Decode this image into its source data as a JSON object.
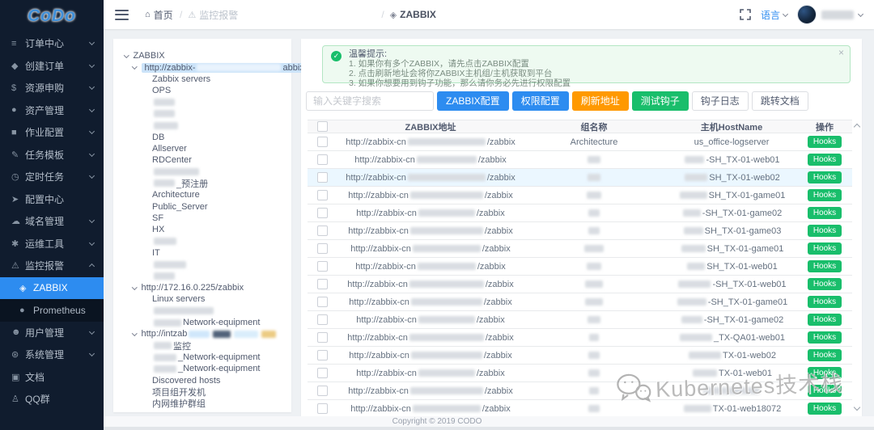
{
  "app": {
    "logo": "CoDo"
  },
  "header": {
    "breadcrumb": [
      {
        "name": "home",
        "glyph": "⌂",
        "label": "首页"
      },
      {
        "name": "monitor-alert",
        "glyph": "⚠",
        "label": "监控报警"
      },
      {
        "name": "zabbix",
        "glyph": "◈",
        "label": "ZABBIX"
      }
    ],
    "language_label": "语言"
  },
  "sidebar": {
    "items": [
      {
        "name": "order-center",
        "glyph": "≡",
        "label": "订单中心",
        "chevron": "down"
      },
      {
        "name": "create-order",
        "glyph": "◆",
        "label": "创建订单",
        "chevron": "down"
      },
      {
        "name": "resource-purchase",
        "glyph": "$",
        "label": "资源申购",
        "chevron": "down"
      },
      {
        "name": "asset-management",
        "glyph": "●",
        "label": "资产管理",
        "chevron": "down"
      },
      {
        "name": "job-config",
        "glyph": "■",
        "label": "作业配置",
        "chevron": "down"
      },
      {
        "name": "task-template",
        "glyph": "✎",
        "label": "任务模板",
        "chevron": "down"
      },
      {
        "name": "scheduled-task",
        "glyph": "◷",
        "label": "定时任务",
        "chevron": "down"
      },
      {
        "name": "config-center",
        "glyph": "➤",
        "label": "配置中心",
        "chevron": null
      },
      {
        "name": "domain-management",
        "glyph": "☁",
        "label": "域名管理",
        "chevron": "down"
      },
      {
        "name": "ops-tools",
        "glyph": "✱",
        "label": "运维工具",
        "chevron": "down"
      },
      {
        "name": "monitor-alert",
        "glyph": "⚠",
        "label": "监控报警",
        "chevron": "up",
        "children": [
          {
            "name": "zabbix",
            "glyph": "◈",
            "label": "ZABBIX",
            "active": true
          },
          {
            "name": "prometheus",
            "glyph": "●",
            "label": "Prometheus",
            "active": false
          }
        ]
      },
      {
        "name": "user-management",
        "glyph": "☻",
        "label": "用户管理",
        "chevron": "down"
      },
      {
        "name": "system-management",
        "glyph": "⊛",
        "label": "系统管理",
        "chevron": "down"
      },
      {
        "name": "docs",
        "glyph": "▣",
        "label": "文档",
        "chevron": null
      },
      {
        "name": "qq-group",
        "glyph": "♙",
        "label": "QQ群",
        "chevron": null
      }
    ]
  },
  "alert": {
    "title": "温馨提示:",
    "lines": [
      "1. 如果你有多个ZABBIX，请先点击ZABBIX配置",
      "2. 点击刷新地址会将你ZABBIX主机组/主机获取到平台",
      "3. 如果你想要用到钩子功能，那么请你务必先进行权限配置"
    ],
    "close_glyph": "×"
  },
  "toolbar": {
    "search_placeholder": "输入关键字搜索",
    "buttons": [
      {
        "name": "zabbix-config",
        "label": "ZABBIX配置",
        "type": "primary"
      },
      {
        "name": "permission-config",
        "label": "权限配置",
        "type": "primary"
      },
      {
        "name": "refresh-address",
        "label": "刷新地址",
        "type": "warning"
      },
      {
        "name": "test-hook",
        "label": "测试钩子",
        "type": "success"
      },
      {
        "name": "hook-log",
        "label": "钩子日志",
        "type": "default"
      },
      {
        "name": "goto-docs",
        "label": "跳转文档",
        "type": "default"
      }
    ]
  },
  "tree": {
    "nodes": [
      {
        "lv": 0,
        "arrow": true,
        "pre": "ZABBIX"
      },
      {
        "lv": 1,
        "arrow": true,
        "sel": true,
        "pre": "http://zabbix-",
        "blurs": [
          {
            "w": 104
          }
        ],
        "suf": "abbix"
      },
      {
        "lv": 2,
        "pre": "Zabbix servers"
      },
      {
        "lv": 2,
        "pre": "OPS"
      },
      {
        "lv": 2,
        "blurs": [
          {
            "w": 26
          }
        ]
      },
      {
        "lv": 2,
        "blurs": [
          {
            "w": 26
          }
        ]
      },
      {
        "lv": 2,
        "blurs": [
          {
            "w": 30
          }
        ]
      },
      {
        "lv": 2,
        "pre": "DB"
      },
      {
        "lv": 2,
        "pre": "Allserver"
      },
      {
        "lv": 2,
        "pre": "RDCenter"
      },
      {
        "lv": 2,
        "blurs": [
          {
            "w": 56
          }
        ]
      },
      {
        "lv": 2,
        "blurs": [
          {
            "w": 26
          }
        ],
        "suf": "_预注册"
      },
      {
        "lv": 2,
        "pre": "Architecture"
      },
      {
        "lv": 2,
        "pre": "Public_Server"
      },
      {
        "lv": 2,
        "pre": "SF"
      },
      {
        "lv": 2,
        "pre": "HX"
      },
      {
        "lv": 2,
        "blurs": [
          {
            "w": 28
          }
        ]
      },
      {
        "lv": 2,
        "pre": "IT"
      },
      {
        "lv": 2,
        "blurs": [
          {
            "w": 40
          }
        ]
      },
      {
        "lv": 2,
        "blurs": [
          {
            "w": 26
          }
        ]
      },
      {
        "lv": 1,
        "arrow": true,
        "pre": "http://172.16.0.225/zabbix"
      },
      {
        "lv": 2,
        "pre": "Linux servers"
      },
      {
        "lv": 2,
        "blurs": [
          {
            "w": 74
          }
        ]
      },
      {
        "lv": 2,
        "blurs": [
          {
            "w": 34
          }
        ],
        "suf": "Network-equipment"
      },
      {
        "lv": 1,
        "arrow": true,
        "pre": "http://intzab",
        "blurs": [
          {
            "w": 26,
            "c": "#cfe7fb"
          },
          {
            "w": 22,
            "c": "#51637a"
          },
          {
            "w": 30,
            "c": "#d9edfb"
          },
          {
            "w": 18,
            "c": "#eccb83"
          }
        ]
      },
      {
        "lv": 2,
        "blurs": [
          {
            "w": 22
          }
        ],
        "suf": "监控"
      },
      {
        "lv": 2,
        "blurs": [
          {
            "w": 28
          }
        ],
        "suf": "_Network-equipment"
      },
      {
        "lv": 2,
        "blurs": [
          {
            "w": 28
          }
        ],
        "suf": "_Network-equipment"
      },
      {
        "lv": 2,
        "pre": "Discovered hosts"
      },
      {
        "lv": 2,
        "pre": "项目组开发机"
      },
      {
        "lv": 2,
        "pre": "内网维护群组"
      }
    ]
  },
  "table": {
    "columns": [
      "",
      "ZABBIX地址",
      "组名称",
      "主机HostName",
      "操作"
    ],
    "addr_prefix": "http://zabbix-cn",
    "addr_suffix": "/zabbix",
    "action_label": "Hooks",
    "rows": [
      {
        "ab": 96,
        "g": "Architecture",
        "gb": 0,
        "hb": 0,
        "h": "us_office-logserver"
      },
      {
        "ab": 74,
        "g": null,
        "gb": 16,
        "hb": 24,
        "h": "-SH_TX-01-web01"
      },
      {
        "ab": 96,
        "g": null,
        "gb": 16,
        "hb": 28,
        "h": "SH_TX-01-web02",
        "hl": true
      },
      {
        "ab": 90,
        "g": null,
        "gb": 18,
        "hb": 34,
        "h": "SH_TX-01-game01"
      },
      {
        "ab": 70,
        "g": null,
        "gb": 14,
        "hb": 22,
        "h": "-SH_TX-01-game02"
      },
      {
        "ab": 90,
        "g": null,
        "gb": 14,
        "hb": 24,
        "h": "SH_TX-01-game03"
      },
      {
        "ab": 84,
        "g": null,
        "gb": 24,
        "hb": 30,
        "h": "SH_TX-01-game01"
      },
      {
        "ab": 72,
        "g": null,
        "gb": 18,
        "hb": 22,
        "h": "SH_TX-01-web01"
      },
      {
        "ab": 92,
        "g": null,
        "gb": 22,
        "hb": 40,
        "h": "-SH_TX-01-web01"
      },
      {
        "ab": 88,
        "g": null,
        "gb": 22,
        "hb": 36,
        "h": "-SH_TX-01-game01"
      },
      {
        "ab": 70,
        "g": null,
        "gb": 16,
        "hb": 26,
        "h": "-SH_TX-01-game02"
      },
      {
        "ab": 92,
        "g": null,
        "gb": 12,
        "hb": 40,
        "h": "_TX-QA01-web01"
      },
      {
        "ab": 88,
        "g": null,
        "gb": 14,
        "hb": 40,
        "h": "TX-01-web02"
      },
      {
        "ab": 70,
        "g": null,
        "gb": 14,
        "hb": 30,
        "h": "TX-01-web01"
      },
      {
        "ab": 90,
        "g": null,
        "gb": 12,
        "hb": 70,
        "h": ""
      },
      {
        "ab": 84,
        "g": null,
        "gb": 14,
        "hb": 34,
        "h": "TX-01-web18072"
      }
    ]
  },
  "watermark": {
    "text": "Kubernetes技术栈"
  },
  "footer": {
    "copyright": "Copyright © 2019 CODO"
  },
  "colors": {
    "primary": "#2d8cf0",
    "warning": "#ff9900",
    "success": "#19be6b",
    "sidebar_bg": "#101c2e",
    "row_highlight": "#ebf7ff"
  }
}
